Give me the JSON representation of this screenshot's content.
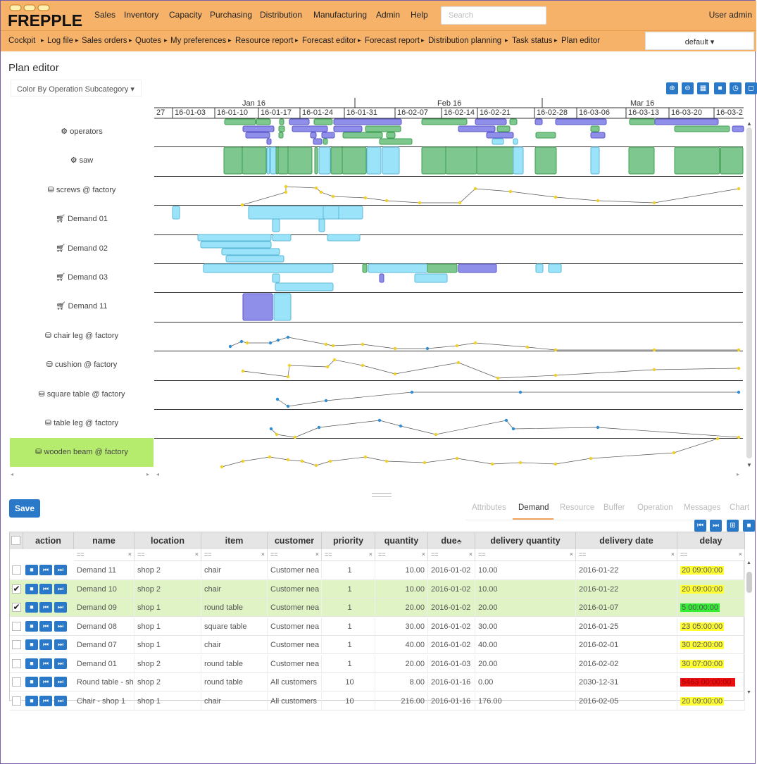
{
  "app": {
    "logo_text": "FREPPLE"
  },
  "nav": {
    "items": [
      "Sales",
      "Inventory",
      "Capacity",
      "Purchasing",
      "Distribution",
      "Manufacturing",
      "Admin",
      "Help"
    ],
    "search_placeholder": "Search",
    "user": "User admin"
  },
  "breadcrumbs": [
    "Cockpit",
    "Log file",
    "Sales orders",
    "Quotes",
    "My preferences",
    "Resource report",
    "Forecast editor",
    "Forecast report",
    "Distribution planning",
    "Task status",
    "Plan editor"
  ],
  "scenario": "default ▾",
  "page": {
    "title": "Plan editor",
    "color_by": "Color By Operation Subcategory ▾"
  },
  "gantt": {
    "months": [
      "Jan 16",
      "Feb 16",
      "Mar 16"
    ],
    "weeks": [
      "27",
      "16-01-03",
      "16-01-10",
      "16-01-17",
      "16-01-24",
      "16-01-31",
      "16-02-07",
      "16-02-14",
      "16-02-21",
      "16-02-28",
      "16-03-06",
      "16-03-13",
      "16-03-20",
      "16-03-2"
    ],
    "rows": [
      {
        "label": "operators",
        "icon": "gears-icon"
      },
      {
        "label": "saw",
        "icon": "gears-icon"
      },
      {
        "label": "screws @ factory",
        "icon": "database-icon"
      },
      {
        "label": "Demand 01",
        "icon": "cart-icon"
      },
      {
        "label": "Demand 02",
        "icon": "cart-icon"
      },
      {
        "label": "Demand 03",
        "icon": "cart-icon"
      },
      {
        "label": "Demand 11",
        "icon": "cart-icon"
      },
      {
        "label": "chair leg @ factory",
        "icon": "database-icon"
      },
      {
        "label": "cushion @ factory",
        "icon": "database-icon"
      },
      {
        "label": "square table @ factory",
        "icon": "database-icon"
      },
      {
        "label": "table leg @ factory",
        "icon": "database-icon"
      },
      {
        "label": "wooden beam @ factory",
        "icon": "database-icon"
      }
    ],
    "colors": {
      "green": "#7ec88f",
      "green_border": "#3f9d52",
      "blue": "#9be3f8",
      "blue_border": "#5bb7d8",
      "purple": "#8f8ee8",
      "purple_border": "#5a55c8",
      "inv_point": "#f0d020",
      "inv_point2": "#2e8fd6"
    }
  },
  "detail": {
    "save_label": "Save",
    "tabs": [
      "Attributes",
      "Demand",
      "Resource",
      "Buffer",
      "Operation",
      "Messages",
      "Chart"
    ],
    "active_tab": "Demand"
  },
  "grid": {
    "columns": [
      "action",
      "name",
      "location",
      "item",
      "customer",
      "priority",
      "quantity",
      "due",
      "delivery quantity",
      "delivery date",
      "delay"
    ],
    "sort_indicator": "⬘",
    "filter_op": "==",
    "rows": [
      {
        "selected": false,
        "name": "Demand 11",
        "location": "shop 2",
        "item": "chair",
        "customer": "Customer nea",
        "priority": "1",
        "quantity": "10.00",
        "due": "2016-01-02",
        "delivery_quantity": "10.00",
        "delivery_date": "2016-01-22",
        "delay": "20 09:00:00",
        "delay_color": "#ffff33"
      },
      {
        "selected": true,
        "name": "Demand 10",
        "location": "shop 2",
        "item": "chair",
        "customer": "Customer nea",
        "priority": "1",
        "quantity": "10.00",
        "due": "2016-01-02",
        "delivery_quantity": "10.00",
        "delivery_date": "2016-01-22",
        "delay": "20 09:00:00",
        "delay_color": "#ffff33"
      },
      {
        "selected": true,
        "name": "Demand 09",
        "location": "shop 1",
        "item": "round table",
        "customer": "Customer nea",
        "priority": "1",
        "quantity": "20.00",
        "due": "2016-01-02",
        "delivery_quantity": "20.00",
        "delivery_date": "2016-01-07",
        "delay": "5 00:00:00",
        "delay_color": "#33ee33"
      },
      {
        "selected": false,
        "name": "Demand 08",
        "location": "shop 1",
        "item": "square table",
        "customer": "Customer nea",
        "priority": "1",
        "quantity": "30.00",
        "due": "2016-01-02",
        "delivery_quantity": "30.00",
        "delivery_date": "2016-01-25",
        "delay": "23 05:00:00",
        "delay_color": "#ffff33"
      },
      {
        "selected": false,
        "name": "Demand 07",
        "location": "shop 1",
        "item": "chair",
        "customer": "Customer nea",
        "priority": "1",
        "quantity": "40.00",
        "due": "2016-01-02",
        "delivery_quantity": "40.00",
        "delivery_date": "2016-02-01",
        "delay": "30 02:00:00",
        "delay_color": "#ffff33"
      },
      {
        "selected": false,
        "name": "Demand 01",
        "location": "shop 2",
        "item": "round table",
        "customer": "Customer nea",
        "priority": "1",
        "quantity": "20.00",
        "due": "2016-01-03",
        "delivery_quantity": "20.00",
        "delivery_date": "2016-02-02",
        "delay": "30 07:00:00",
        "delay_color": "#ffff33"
      },
      {
        "selected": false,
        "name": "Round table - sh",
        "location": "shop 2",
        "item": "round table",
        "customer": "All customers",
        "priority": "10",
        "quantity": "8.00",
        "due": "2016-01-16",
        "delivery_quantity": "0.00",
        "delivery_date": "2030-12-31",
        "delay": "5463 00:00:00",
        "delay_color": "#e81010"
      },
      {
        "selected": false,
        "name": "Chair - shop 1",
        "location": "shop 1",
        "item": "chair",
        "customer": "All customers",
        "priority": "10",
        "quantity": "216.00",
        "due": "2016-01-16",
        "delivery_quantity": "176.00",
        "delivery_date": "2016-02-05",
        "delay": "20 09:00:00",
        "delay_color": "#ffff33"
      }
    ]
  }
}
